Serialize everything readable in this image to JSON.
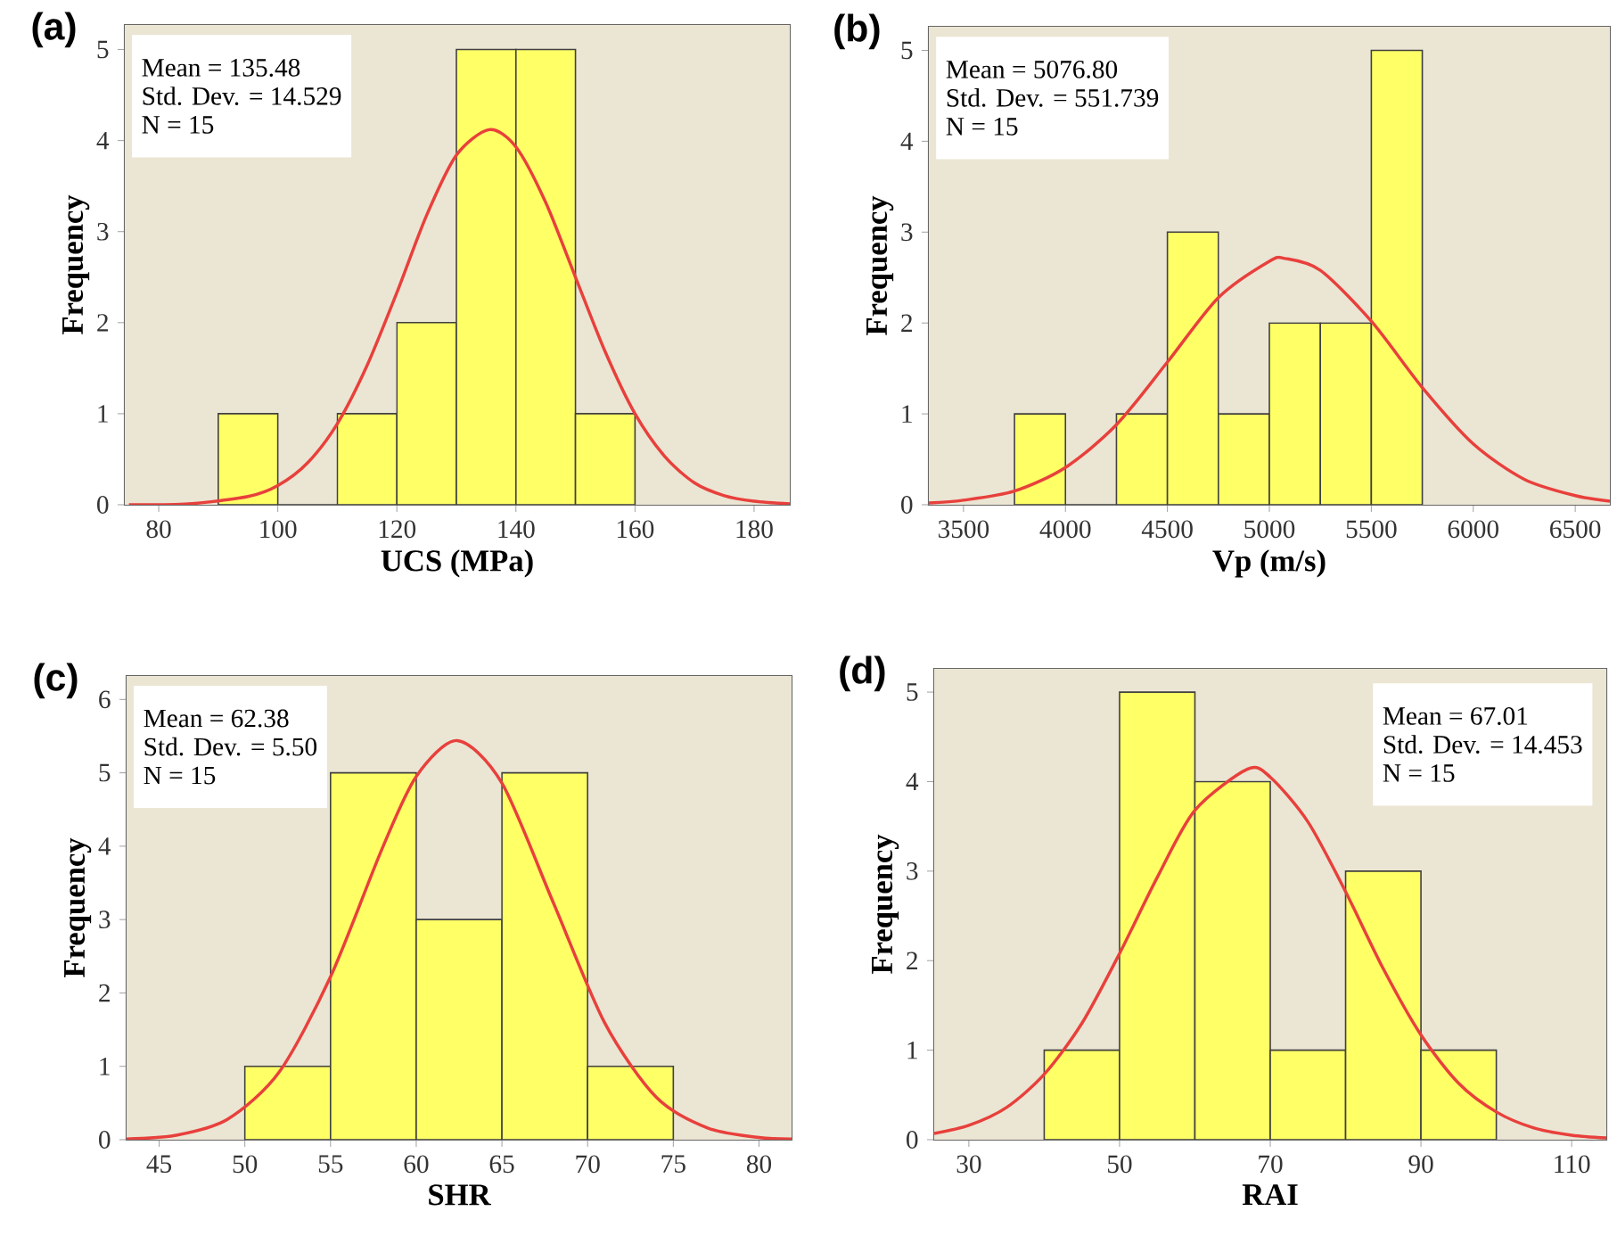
{
  "chart_data": [
    {
      "type": "histogram",
      "title": "(a)",
      "xlabel": "UCS (MPa)",
      "ylabel": "Frequency",
      "annotations": [
        "Mean = 135.48",
        "Std. Dev. = 14.529",
        "N = 15"
      ],
      "color": "#ffff66",
      "bins": [
        90,
        100,
        110,
        120,
        130,
        140,
        150,
        160
      ],
      "values": [
        1,
        0,
        1,
        2,
        5,
        5,
        1
      ],
      "series": [
        {
          "type": "line",
          "color": "#e8403c",
          "x": [
            75,
            85,
            95,
            100,
            105,
            110,
            115,
            120,
            125,
            130,
            135.5,
            140,
            145,
            150,
            155,
            160,
            165,
            170,
            175,
            180,
            186
          ],
          "values": [
            0.0,
            0.01,
            0.09,
            0.21,
            0.46,
            0.89,
            1.53,
            2.33,
            3.18,
            3.84,
            4.12,
            3.93,
            3.32,
            2.5,
            1.68,
            1.0,
            0.53,
            0.24,
            0.1,
            0.04,
            0.01
          ]
        }
      ],
      "xlim": [
        74.3,
        186
      ],
      "ylim": [
        0,
        5.27
      ],
      "xticks": [
        80,
        100,
        120,
        140,
        160,
        180
      ],
      "yticks": [
        0,
        1,
        2,
        3,
        4,
        5
      ]
    },
    {
      "type": "histogram",
      "title": "(b)",
      "xlabel": "Vp (m/s)",
      "ylabel": "Frequency",
      "annotations": [
        "Mean = 5076.80",
        "Std. Dev. = 551.739",
        "N = 15"
      ],
      "color": "#ffff66",
      "bins": [
        3750,
        4000,
        4250,
        4500,
        4750,
        5000,
        5250,
        5500,
        5750
      ],
      "values": [
        1,
        0,
        1,
        3,
        1,
        2,
        2,
        5
      ],
      "series": [
        {
          "type": "line",
          "color": "#e8403c",
          "x": [
            3330,
            3500,
            3750,
            4000,
            4250,
            4500,
            4750,
            5000,
            5077,
            5250,
            5500,
            5750,
            6000,
            6250,
            6500,
            6670
          ],
          "values": [
            0.02,
            0.05,
            0.15,
            0.41,
            0.88,
            1.57,
            2.28,
            2.68,
            2.71,
            2.58,
            2.02,
            1.29,
            0.67,
            0.28,
            0.1,
            0.04
          ]
        }
      ],
      "xlim": [
        3330,
        6670
      ],
      "ylim": [
        0,
        5.26
      ],
      "xticks": [
        3500,
        4000,
        4500,
        5000,
        5500,
        6000,
        6500
      ],
      "yticks": [
        0,
        1,
        2,
        3,
        4,
        5
      ]
    },
    {
      "type": "histogram",
      "title": "(c)",
      "xlabel": "SHR",
      "ylabel": "Frequency",
      "annotations": [
        "Mean = 62.38",
        "Std. Dev. = 5.50",
        "N = 15"
      ],
      "color": "#ffff66",
      "bins": [
        50,
        55,
        60,
        65,
        70,
        75
      ],
      "values": [
        1,
        5,
        3,
        5,
        1
      ],
      "series": [
        {
          "type": "line",
          "color": "#e8403c",
          "x": [
            43.1,
            46,
            49,
            52,
            55,
            58,
            60,
            62.4,
            65,
            68,
            71,
            74,
            77,
            80,
            81.9
          ],
          "values": [
            0.01,
            0.06,
            0.28,
            0.92,
            2.22,
            3.96,
            4.95,
            5.44,
            4.86,
            3.23,
            1.59,
            0.58,
            0.16,
            0.03,
            0.01
          ]
        }
      ],
      "xlim": [
        43.1,
        81.9
      ],
      "ylim": [
        0,
        6.32
      ],
      "xticks": [
        45,
        50,
        55,
        60,
        65,
        70,
        75,
        80
      ],
      "yticks": [
        0,
        1,
        2,
        3,
        4,
        5,
        6
      ]
    },
    {
      "type": "histogram",
      "title": "(d)",
      "xlabel": "RAI",
      "ylabel": "Frequency",
      "annotations": [
        "Mean = 67.01",
        "Std. Dev. = 14.453",
        "N = 15"
      ],
      "color": "#ffff66",
      "bins": [
        40,
        50,
        60,
        70,
        80,
        90,
        100
      ],
      "values": [
        1,
        5,
        4,
        1,
        3,
        1
      ],
      "series": [
        {
          "type": "line",
          "color": "#e8403c",
          "x": [
            25.4,
            30,
            35,
            40,
            45,
            50,
            55,
            60,
            67,
            70,
            75,
            80,
            85,
            90,
            95,
            100,
            105,
            110,
            114.6
          ],
          "values": [
            0.07,
            0.16,
            0.36,
            0.73,
            1.3,
            2.08,
            2.93,
            3.68,
            4.14,
            4.05,
            3.55,
            2.77,
            1.91,
            1.17,
            0.63,
            0.31,
            0.13,
            0.05,
            0.02
          ]
        }
      ],
      "xlim": [
        25.4,
        114.6
      ],
      "ylim": [
        0,
        5.26
      ],
      "xticks": [
        30,
        50,
        70,
        90,
        110
      ],
      "yticks": [
        0,
        1,
        2,
        3,
        4,
        5
      ]
    }
  ]
}
